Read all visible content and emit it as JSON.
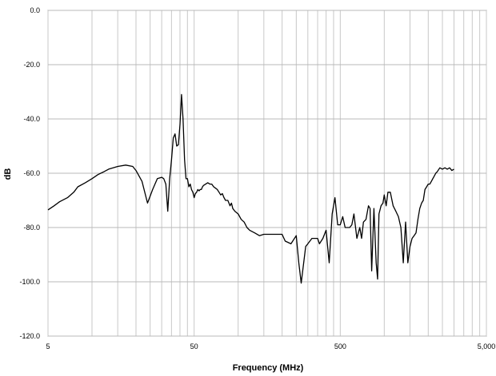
{
  "chart_data": {
    "type": "line",
    "title": "",
    "xlabel": "Frequency (MHz)",
    "ylabel": "dB",
    "x_scale": "log",
    "xlim": [
      5,
      5000
    ],
    "ylim": [
      -120,
      0
    ],
    "x_ticks": [
      "5",
      "50",
      "500",
      "5,000"
    ],
    "y_ticks": [
      "0.0",
      "-20.0",
      "-40.0",
      "-60.0",
      "-80.0",
      "-100.0",
      "-120.0"
    ],
    "grid": true,
    "legend": "none",
    "line_color": "#000000",
    "series": [
      {
        "x": [
          5,
          5.5,
          6,
          6.8,
          7.5,
          8,
          9,
          10,
          11,
          12,
          13,
          15,
          17,
          19,
          20,
          22,
          24,
          26,
          28,
          30,
          31,
          32,
          33,
          34,
          35,
          36,
          37,
          38,
          39,
          40,
          41,
          42,
          43,
          44,
          45,
          46,
          47,
          48,
          49,
          50,
          51,
          52,
          53,
          54,
          55,
          56,
          57,
          58,
          60,
          62,
          64,
          66,
          68,
          70,
          72,
          74,
          76,
          78,
          80,
          82,
          85,
          88,
          90,
          92,
          95,
          100,
          105,
          110,
          115,
          120,
          130,
          140,
          150,
          170,
          200,
          210,
          230,
          250,
          260,
          270,
          290,
          300,
          320,
          340,
          350,
          360,
          380,
          400,
          420,
          440,
          460,
          480,
          500,
          520,
          540,
          560,
          580,
          600,
          620,
          650,
          680,
          700,
          720,
          750,
          780,
          800,
          820,
          850,
          880,
          900,
          920,
          950,
          980,
          1000,
          1030,
          1060,
          1100,
          1150,
          1200,
          1250,
          1300,
          1350,
          1400,
          1450,
          1500,
          1550,
          1600,
          1650,
          1700,
          1750,
          1800,
          1850,
          1900,
          1950,
          2000,
          2050,
          2100,
          2150,
          2200,
          2250,
          2300,
          2400,
          2500,
          2600,
          2700,
          2800,
          2900,
          3000
        ],
        "y": [
          -73.5,
          -72,
          -70.5,
          -69,
          -67,
          -65,
          -63.5,
          -62,
          -60.5,
          -59.5,
          -58.5,
          -57.5,
          -57,
          -57.5,
          -59,
          -63,
          -71,
          -66,
          -62,
          -61.5,
          -62,
          -64,
          -74,
          -62,
          -55,
          -47,
          -45.5,
          -50,
          -49.5,
          -42,
          -31,
          -40,
          -55,
          -62,
          -62,
          -65,
          -64,
          -66,
          -67,
          -69,
          -67.5,
          -67,
          -66,
          -66.5,
          -66,
          -66,
          -65,
          -64.5,
          -64,
          -63.5,
          -64,
          -64,
          -65,
          -65.5,
          -66,
          -67,
          -68,
          -67.5,
          -69,
          -70,
          -70,
          -72,
          -71,
          -73,
          -74,
          -75,
          -77,
          -78,
          -80,
          -81,
          -82,
          -83,
          -82.5,
          -82.5,
          -82.5,
          -85,
          -86,
          -83,
          -93,
          -100.5,
          -87,
          -86,
          -84,
          -84,
          -84,
          -86,
          -84,
          -81,
          -93,
          -75,
          -69,
          -79,
          -79,
          -76,
          -80,
          -80,
          -80,
          -79,
          -75,
          -84,
          -80,
          -84,
          -78,
          -77,
          -72,
          -73,
          -96,
          -73,
          -93,
          -99,
          -75,
          -72,
          -71,
          -68,
          -72,
          -67,
          -67,
          -72,
          -74,
          -76,
          -80,
          -93,
          -78,
          -93,
          -87,
          -84,
          -83,
          -82,
          -77,
          -73,
          -71,
          -70,
          -66,
          -65,
          -64,
          -64,
          -63,
          -62,
          -61,
          -60,
          -59.5,
          -58,
          -58.5,
          -58,
          -58.5,
          -58,
          -59,
          -58.5
        ]
      }
    ]
  }
}
